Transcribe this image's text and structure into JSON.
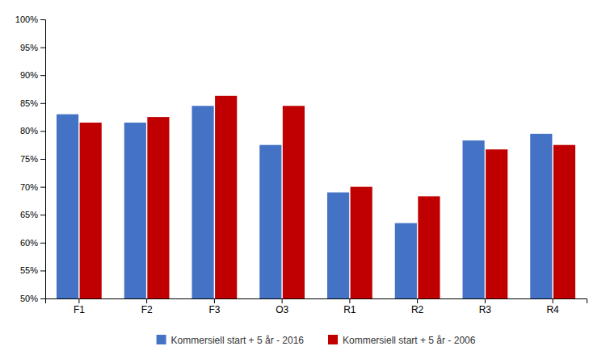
{
  "chart_data": {
    "type": "bar",
    "categories": [
      "F1",
      "F2",
      "F3",
      "O3",
      "R1",
      "R2",
      "R3",
      "R4"
    ],
    "series": [
      {
        "name": "Kommersiell start + 5 år - 2016",
        "color": "#4472C4",
        "values": [
          0.83,
          0.815,
          0.845,
          0.775,
          0.69,
          0.635,
          0.783,
          0.795
        ]
      },
      {
        "name": "Kommersiell start + 5 år - 2006",
        "color": "#C00000",
        "values": [
          0.815,
          0.825,
          0.863,
          0.845,
          0.7,
          0.683,
          0.767,
          0.775
        ]
      }
    ],
    "ylim": [
      0.5,
      1.0
    ],
    "yticks": [
      {
        "value": 0.5,
        "label": "50%"
      },
      {
        "value": 0.55,
        "label": "55%"
      },
      {
        "value": 0.6,
        "label": "60%"
      },
      {
        "value": 0.65,
        "label": "65%"
      },
      {
        "value": 0.7,
        "label": "70%"
      },
      {
        "value": 0.75,
        "label": "75%"
      },
      {
        "value": 0.8,
        "label": "80%"
      },
      {
        "value": 0.85,
        "label": "85%"
      },
      {
        "value": 0.9,
        "label": "90%"
      },
      {
        "value": 0.95,
        "label": "95%"
      },
      {
        "value": 1.0,
        "label": "100%"
      }
    ],
    "grid": false,
    "legend": "bottom"
  }
}
